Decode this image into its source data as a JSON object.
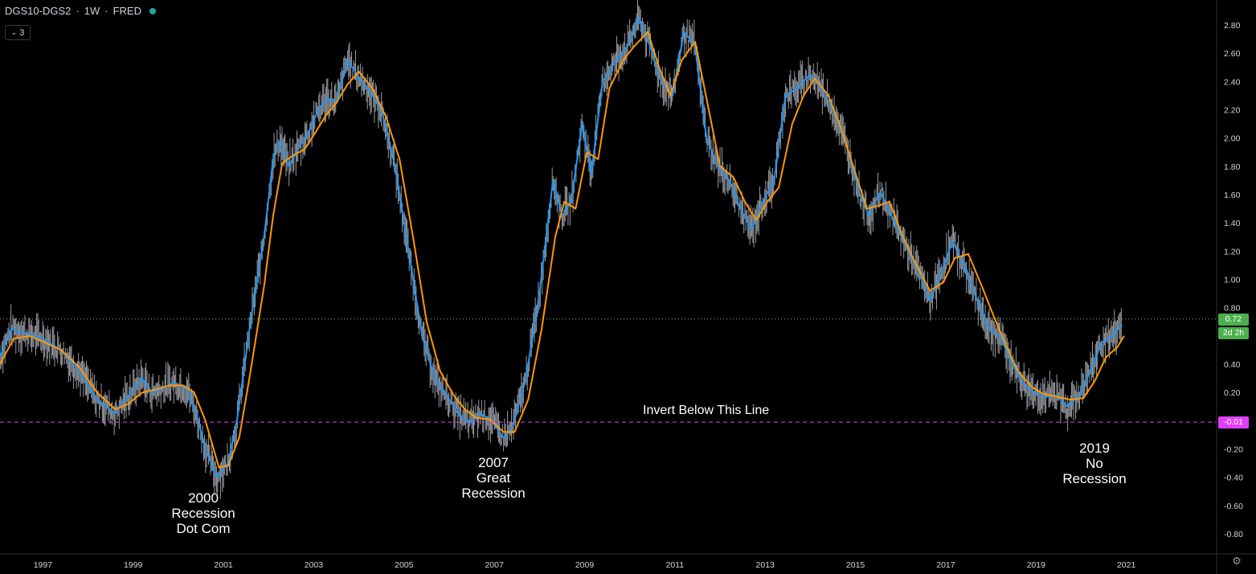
{
  "header": {
    "symbol": "DGS10-DGS2",
    "interval": "1W",
    "source": "FRED",
    "indicator_count": "3"
  },
  "colors": {
    "background": "#000000",
    "fast_ma": "#2196f3",
    "slow_ma": "#ff9800",
    "price": "#b2b5be",
    "zero_line": "#e040fb",
    "last_line": "#8bc34a",
    "last_tag": "#4caf50",
    "invert_tag": "#e040fb"
  },
  "annotations": {
    "a2000": [
      "2000",
      "Recession",
      "Dot Com"
    ],
    "a2007": [
      "2007",
      "Great",
      "Recession"
    ],
    "a2019": [
      "2019",
      "No",
      "Recession"
    ],
    "invert": "Invert Below This Line"
  },
  "tags": {
    "last_value": "0.72",
    "countdown": "2d 2h",
    "invert_value": "-0.01"
  },
  "chart_data": {
    "type": "line",
    "ylim": [
      -0.9,
      2.9
    ],
    "xlim": [
      1996.05,
      2023.0
    ],
    "y_ticks": [
      "2.80",
      "2.60",
      "2.40",
      "2.20",
      "2.00",
      "1.80",
      "1.60",
      "1.40",
      "1.20",
      "1.00",
      "0.80",
      "0.60",
      "0.40",
      "0.20",
      "0.00",
      "-0.20",
      "-0.40",
      "-0.60",
      "-0.80"
    ],
    "x_ticks": [
      {
        "label": "1997",
        "x": 1997.0
      },
      {
        "label": "1999",
        "x": 1999.0
      },
      {
        "label": "2001",
        "x": 2001.0
      },
      {
        "label": "2003",
        "x": 2003.0
      },
      {
        "label": "2005",
        "x": 2005.0
      },
      {
        "label": "2007",
        "x": 2007.0
      },
      {
        "label": "2009",
        "x": 2009.0
      },
      {
        "label": "2011",
        "x": 2011.0
      },
      {
        "label": "2013",
        "x": 2013.0
      },
      {
        "label": "2015",
        "x": 2015.0
      },
      {
        "label": "2017",
        "x": 2017.0
      },
      {
        "label": "2019",
        "x": 2019.0
      },
      {
        "label": "2021",
        "x": 2021.0
      }
    ],
    "hlines": [
      {
        "y": -0.01,
        "style": "dashed"
      },
      {
        "y": 0.72,
        "style": "dotted"
      }
    ],
    "series": [
      {
        "values": [
          [
            1996.05,
            0.45
          ],
          [
            1996.3,
            0.65
          ],
          [
            1996.6,
            0.62
          ],
          [
            1997.0,
            0.58
          ],
          [
            1997.4,
            0.5
          ],
          [
            1997.8,
            0.35
          ],
          [
            1998.2,
            0.15
          ],
          [
            1998.6,
            0.05
          ],
          [
            1998.9,
            0.18
          ],
          [
            1999.2,
            0.3
          ],
          [
            1999.4,
            0.2
          ],
          [
            1999.6,
            0.22
          ],
          [
            1999.9,
            0.27
          ],
          [
            2000.2,
            0.22
          ],
          [
            2000.4,
            0.05
          ],
          [
            2000.6,
            -0.2
          ],
          [
            2000.85,
            -0.4
          ],
          [
            2001.1,
            -0.3
          ],
          [
            2001.3,
            0.0
          ],
          [
            2001.6,
            0.7
          ],
          [
            2001.9,
            1.3
          ],
          [
            2002.1,
            1.85
          ],
          [
            2002.25,
            1.98
          ],
          [
            2002.45,
            1.8
          ],
          [
            2002.7,
            1.95
          ],
          [
            2002.9,
            2.05
          ],
          [
            2003.1,
            2.2
          ],
          [
            2003.3,
            2.28
          ],
          [
            2003.5,
            2.25
          ],
          [
            2003.75,
            2.55
          ],
          [
            2003.95,
            2.45
          ],
          [
            2004.2,
            2.35
          ],
          [
            2004.5,
            2.2
          ],
          [
            2004.8,
            1.8
          ],
          [
            2005.1,
            1.2
          ],
          [
            2005.4,
            0.6
          ],
          [
            2005.7,
            0.28
          ],
          [
            2006.0,
            0.15
          ],
          [
            2006.2,
            0.05
          ],
          [
            2006.45,
            -0.02
          ],
          [
            2006.7,
            0.05
          ],
          [
            2006.95,
            0.0
          ],
          [
            2007.2,
            -0.12
          ],
          [
            2007.4,
            -0.05
          ],
          [
            2007.7,
            0.3
          ],
          [
            2008.0,
            0.9
          ],
          [
            2008.3,
            1.7
          ],
          [
            2008.5,
            1.45
          ],
          [
            2008.7,
            1.55
          ],
          [
            2008.95,
            2.1
          ],
          [
            2009.15,
            1.75
          ],
          [
            2009.4,
            2.4
          ],
          [
            2009.7,
            2.55
          ],
          [
            2009.95,
            2.65
          ],
          [
            2010.2,
            2.85
          ],
          [
            2010.45,
            2.65
          ],
          [
            2010.7,
            2.4
          ],
          [
            2010.95,
            2.3
          ],
          [
            2011.2,
            2.75
          ],
          [
            2011.45,
            2.65
          ],
          [
            2011.7,
            2.0
          ],
          [
            2011.95,
            1.8
          ],
          [
            2012.2,
            1.7
          ],
          [
            2012.45,
            1.5
          ],
          [
            2012.7,
            1.35
          ],
          [
            2012.95,
            1.55
          ],
          [
            2013.2,
            1.7
          ],
          [
            2013.45,
            2.3
          ],
          [
            2013.7,
            2.35
          ],
          [
            2014.0,
            2.45
          ],
          [
            2014.25,
            2.35
          ],
          [
            2014.5,
            2.2
          ],
          [
            2014.8,
            1.95
          ],
          [
            2015.1,
            1.6
          ],
          [
            2015.3,
            1.45
          ],
          [
            2015.55,
            1.62
          ],
          [
            2015.8,
            1.45
          ],
          [
            2016.1,
            1.25
          ],
          [
            2016.4,
            1.05
          ],
          [
            2016.65,
            0.85
          ],
          [
            2016.9,
            1.05
          ],
          [
            2017.15,
            1.27
          ],
          [
            2017.4,
            1.1
          ],
          [
            2017.7,
            0.85
          ],
          [
            2017.95,
            0.65
          ],
          [
            2018.2,
            0.6
          ],
          [
            2018.45,
            0.42
          ],
          [
            2018.7,
            0.27
          ],
          [
            2018.95,
            0.2
          ],
          [
            2019.2,
            0.17
          ],
          [
            2019.45,
            0.18
          ],
          [
            2019.7,
            0.1
          ],
          [
            2019.95,
            0.18
          ],
          [
            2020.2,
            0.35
          ],
          [
            2020.45,
            0.55
          ],
          [
            2020.7,
            0.6
          ],
          [
            2020.9,
            0.68
          ]
        ]
      },
      {
        "values": [
          [
            1996.05,
            0.4
          ],
          [
            1996.35,
            0.58
          ],
          [
            1996.7,
            0.6
          ],
          [
            1997.0,
            0.56
          ],
          [
            1997.4,
            0.5
          ],
          [
            1997.8,
            0.38
          ],
          [
            1998.2,
            0.2
          ],
          [
            1998.6,
            0.08
          ],
          [
            1998.9,
            0.12
          ],
          [
            1999.2,
            0.2
          ],
          [
            1999.5,
            0.22
          ],
          [
            1999.8,
            0.25
          ],
          [
            2000.1,
            0.25
          ],
          [
            2000.35,
            0.2
          ],
          [
            2000.6,
            0.0
          ],
          [
            2000.9,
            -0.33
          ],
          [
            2001.1,
            -0.32
          ],
          [
            2001.35,
            -0.12
          ],
          [
            2001.6,
            0.35
          ],
          [
            2001.9,
            0.95
          ],
          [
            2002.1,
            1.45
          ],
          [
            2002.3,
            1.82
          ],
          [
            2002.55,
            1.88
          ],
          [
            2002.8,
            1.92
          ],
          [
            2003.0,
            2.02
          ],
          [
            2003.25,
            2.15
          ],
          [
            2003.5,
            2.25
          ],
          [
            2003.75,
            2.38
          ],
          [
            2004.0,
            2.47
          ],
          [
            2004.3,
            2.35
          ],
          [
            2004.6,
            2.15
          ],
          [
            2004.9,
            1.85
          ],
          [
            2005.2,
            1.3
          ],
          [
            2005.5,
            0.7
          ],
          [
            2005.8,
            0.35
          ],
          [
            2006.1,
            0.18
          ],
          [
            2006.35,
            0.08
          ],
          [
            2006.6,
            0.02
          ],
          [
            2006.9,
            0.01
          ],
          [
            2007.2,
            -0.08
          ],
          [
            2007.45,
            -0.08
          ],
          [
            2007.75,
            0.15
          ],
          [
            2008.05,
            0.65
          ],
          [
            2008.35,
            1.3
          ],
          [
            2008.55,
            1.55
          ],
          [
            2008.8,
            1.5
          ],
          [
            2009.05,
            1.9
          ],
          [
            2009.3,
            1.85
          ],
          [
            2009.55,
            2.35
          ],
          [
            2009.85,
            2.55
          ],
          [
            2010.1,
            2.65
          ],
          [
            2010.4,
            2.75
          ],
          [
            2010.65,
            2.5
          ],
          [
            2010.9,
            2.3
          ],
          [
            2011.15,
            2.55
          ],
          [
            2011.45,
            2.68
          ],
          [
            2011.75,
            2.2
          ],
          [
            2012.0,
            1.8
          ],
          [
            2012.3,
            1.72
          ],
          [
            2012.55,
            1.55
          ],
          [
            2012.8,
            1.42
          ],
          [
            2013.05,
            1.55
          ],
          [
            2013.3,
            1.65
          ],
          [
            2013.6,
            2.1
          ],
          [
            2013.85,
            2.3
          ],
          [
            2014.1,
            2.42
          ],
          [
            2014.4,
            2.3
          ],
          [
            2014.7,
            2.05
          ],
          [
            2015.0,
            1.75
          ],
          [
            2015.25,
            1.5
          ],
          [
            2015.5,
            1.52
          ],
          [
            2015.75,
            1.55
          ],
          [
            2016.05,
            1.3
          ],
          [
            2016.35,
            1.1
          ],
          [
            2016.65,
            0.92
          ],
          [
            2016.95,
            0.98
          ],
          [
            2017.2,
            1.15
          ],
          [
            2017.5,
            1.18
          ],
          [
            2017.8,
            0.95
          ],
          [
            2018.05,
            0.75
          ],
          [
            2018.35,
            0.52
          ],
          [
            2018.6,
            0.35
          ],
          [
            2018.9,
            0.24
          ],
          [
            2019.15,
            0.19
          ],
          [
            2019.45,
            0.17
          ],
          [
            2019.75,
            0.15
          ],
          [
            2020.05,
            0.16
          ],
          [
            2020.3,
            0.28
          ],
          [
            2020.55,
            0.45
          ],
          [
            2020.8,
            0.52
          ],
          [
            2020.95,
            0.6
          ]
        ]
      }
    ]
  }
}
